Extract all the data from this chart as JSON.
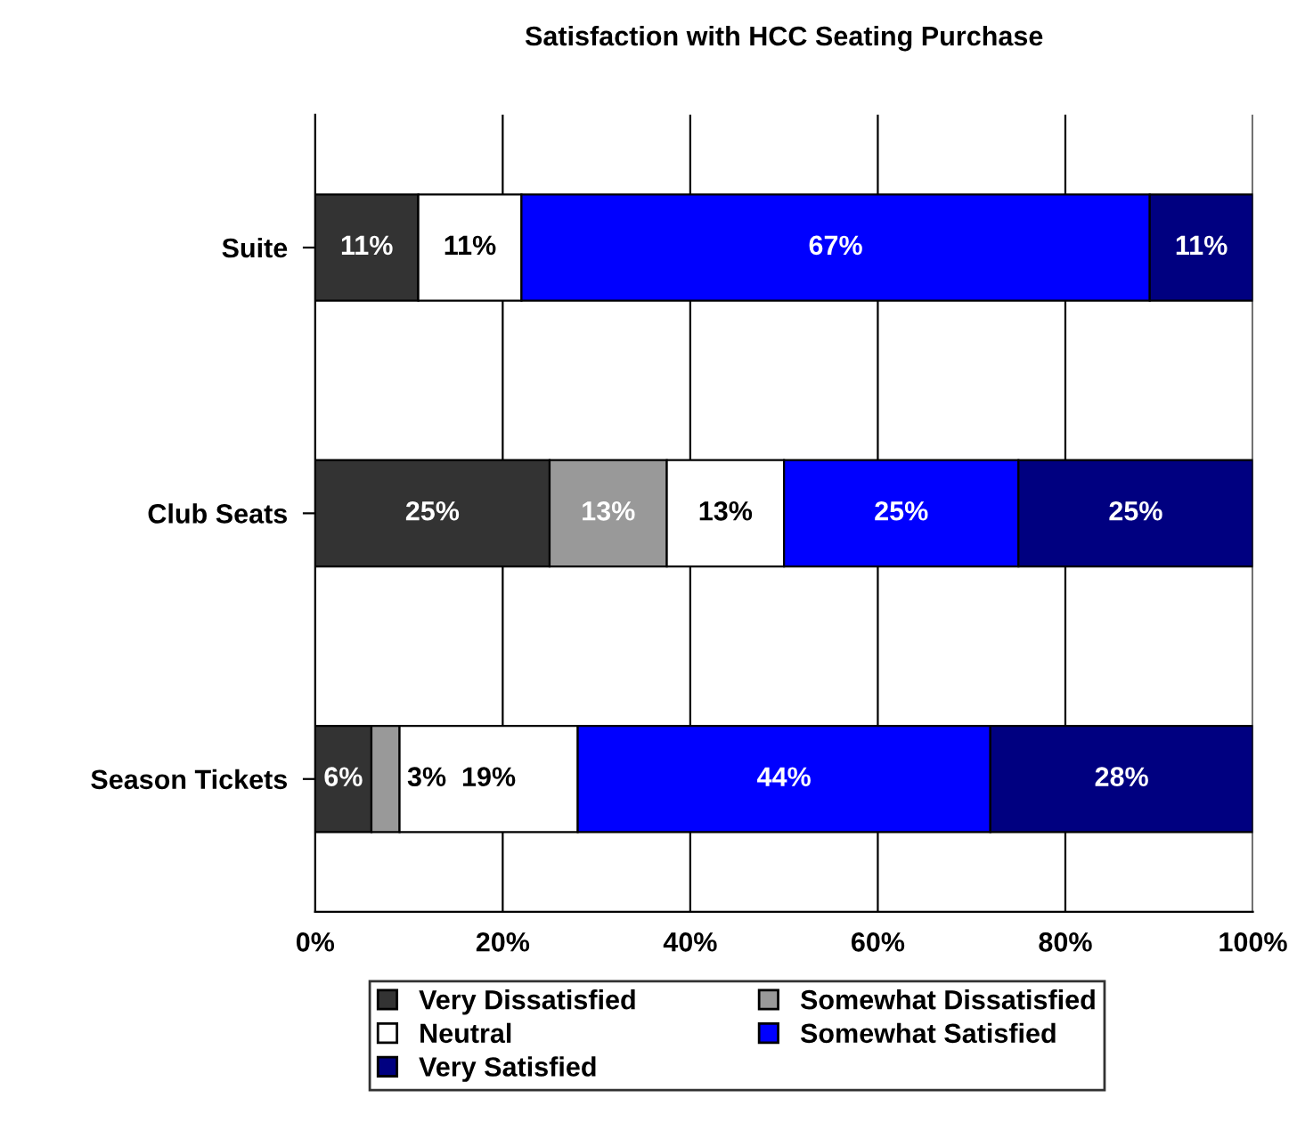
{
  "chart_data": {
    "type": "bar",
    "title": "Satisfaction with HCC Seating Purchase",
    "orientation": "horizontal",
    "stacked": true,
    "categories": [
      "Suite",
      "Club Seats",
      "Season Tickets"
    ],
    "series": [
      {
        "name": "Very Dissatisfied",
        "color": "#333333",
        "values": [
          11,
          25,
          6
        ],
        "value_labels": [
          "11%",
          "25%",
          "6%"
        ]
      },
      {
        "name": "Somewhat Dissatisfied",
        "color": "#999999",
        "values": [
          0,
          12.5,
          3
        ],
        "value_labels": [
          null,
          "13%",
          "3%"
        ]
      },
      {
        "name": "Neutral",
        "color": "#ffffff",
        "values": [
          11,
          12.5,
          19
        ],
        "value_labels": [
          "11%",
          "13%",
          "19%"
        ]
      },
      {
        "name": "Somewhat Satisfied",
        "color": "#0000ff",
        "values": [
          67,
          25,
          44
        ],
        "value_labels": [
          "67%",
          "25%",
          "44%"
        ]
      },
      {
        "name": "Very Satisfied",
        "color": "#000080",
        "values": [
          11,
          25,
          28
        ],
        "value_labels": [
          "11%",
          "25%",
          "28%"
        ]
      }
    ],
    "xlim": [
      0,
      100
    ],
    "xticks": [
      {
        "value": 0,
        "label": "0%"
      },
      {
        "value": 20,
        "label": "20%"
      },
      {
        "value": 40,
        "label": "40%"
      },
      {
        "value": 60,
        "label": "60%"
      },
      {
        "value": 80,
        "label": "80%"
      },
      {
        "value": 100,
        "label": "100%"
      }
    ],
    "grid": "x",
    "legend": "bottom"
  }
}
